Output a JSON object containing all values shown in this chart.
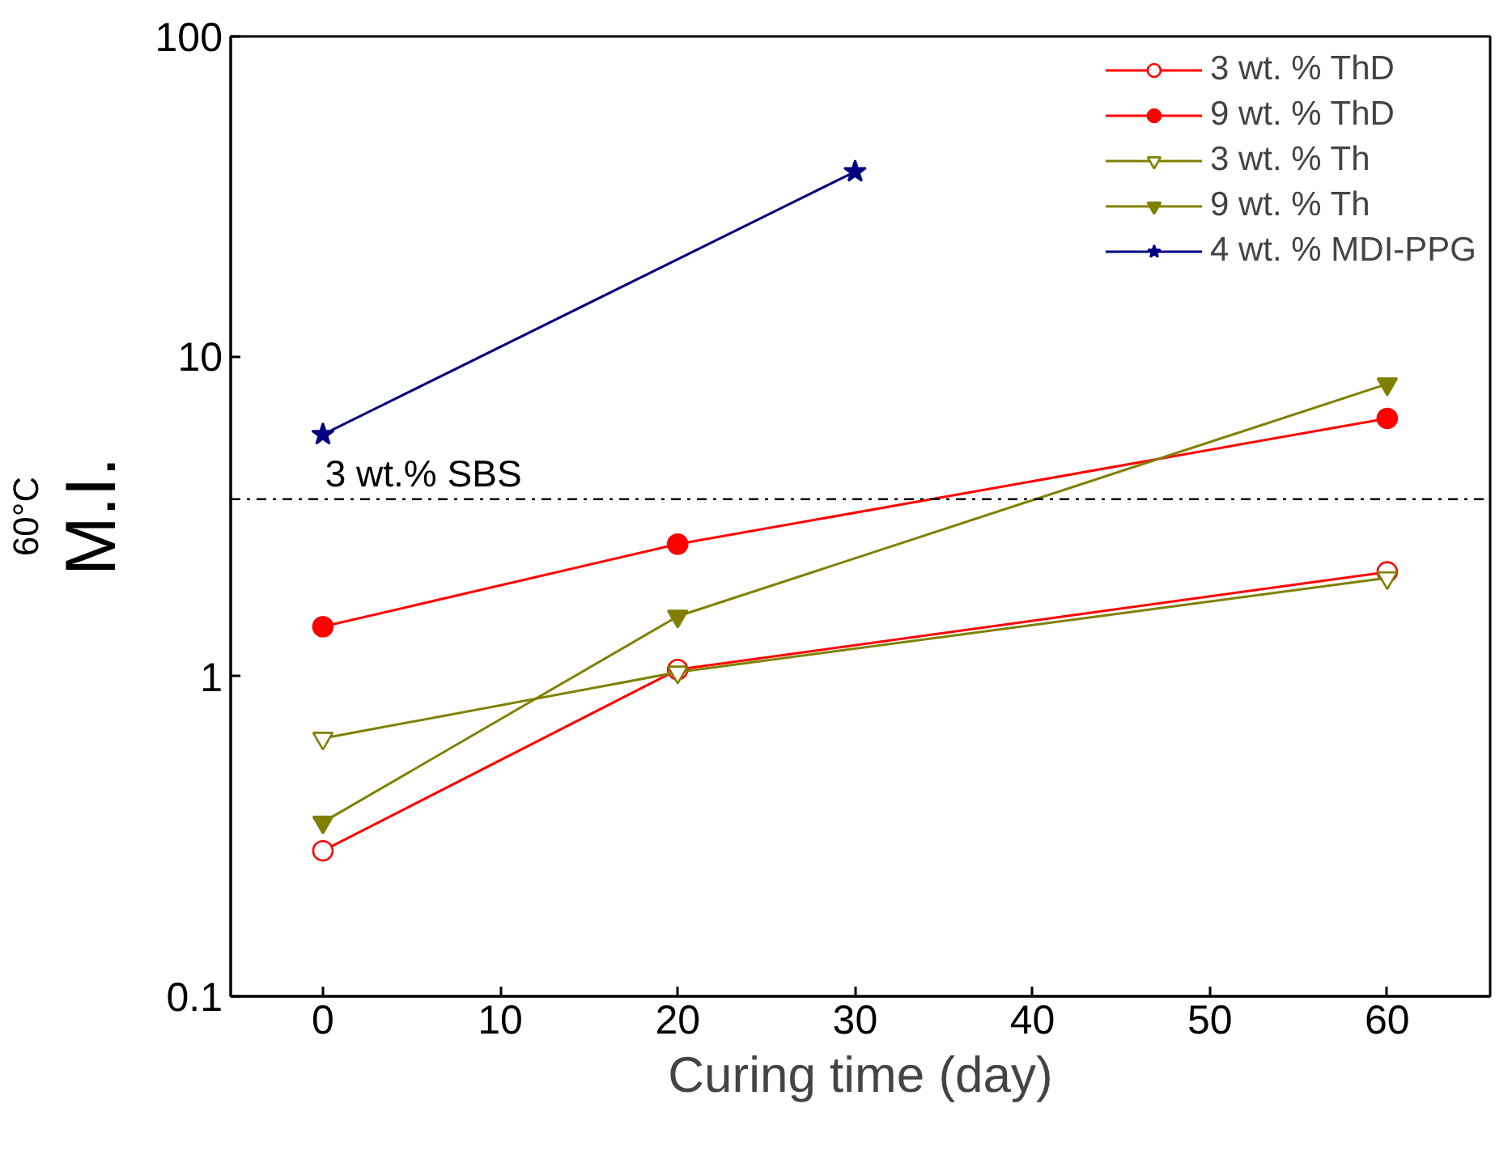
{
  "chart_data": {
    "type": "line",
    "xlabel": "Curing time (day)",
    "ylabel": "M.I.$^{60°C}$",
    "log": "y",
    "grid": false,
    "legend": "top right",
    "line_style": "solid",
    "xlim": [
      -5.2,
      65.8
    ],
    "xticks": [
      0,
      10,
      20,
      30,
      40,
      50,
      60
    ],
    "ylim": [
      0.1,
      100
    ],
    "yticks": [
      0.1,
      1,
      10,
      100
    ],
    "series": [
      {
        "name": "3 wt. % ThD",
        "color": "#ff0000",
        "marker": "circle",
        "x": [
          0,
          20,
          60
        ],
        "values": [
          0.285,
          1.05,
          2.12
        ]
      },
      {
        "name": "9 wt. % ThD",
        "color": "#ff0000",
        "marker": "circle",
        "x": [
          0,
          20,
          60
        ],
        "values": [
          1.43,
          2.59,
          6.4
        ]
      },
      {
        "name": "3 wt. % Th",
        "color": "#808000",
        "marker": "triangle",
        "x": [
          0,
          20,
          60
        ],
        "values": [
          0.64,
          1.03,
          2.03
        ]
      },
      {
        "name": "9 wt. % Th",
        "color": "#808000",
        "marker": "triangle",
        "x": [
          0,
          20,
          60
        ],
        "values": [
          0.35,
          1.54,
          8.2
        ]
      },
      {
        "name": "4 wt. % MDI-PPG",
        "color": "#000080",
        "marker": "star",
        "x": [
          0,
          30
        ],
        "values": [
          5.7,
          37.8
        ]
      }
    ],
    "ref_lines": [
      {
        "axis": "y",
        "value": 3.58,
        "label": "3 wt.% SBS",
        "color": "#000000",
        "line_style": "dashdot"
      }
    ]
  }
}
